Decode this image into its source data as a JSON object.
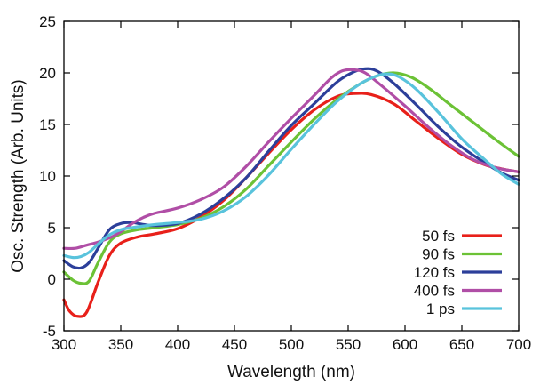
{
  "chart_data": {
    "type": "line",
    "title": "",
    "xlabel": "Wavelength (nm)",
    "ylabel": "Osc. Strength (Arb. Units)",
    "xlim": [
      300,
      700
    ],
    "ylim": [
      -5,
      25
    ],
    "xticks": [
      300,
      350,
      400,
      450,
      500,
      550,
      600,
      650,
      700
    ],
    "yticks": [
      -5,
      0,
      5,
      10,
      15,
      20,
      25
    ],
    "grid": false,
    "legend_position": "bottom-right",
    "series": [
      {
        "name": "50 fs",
        "color": "#e8201a",
        "points": [
          [
            300,
            -2
          ],
          [
            305,
            -3.1
          ],
          [
            312,
            -3.6
          ],
          [
            320,
            -3.2
          ],
          [
            330,
            -0.3
          ],
          [
            340,
            2.3
          ],
          [
            350,
            3.5
          ],
          [
            365,
            4.1
          ],
          [
            380,
            4.4
          ],
          [
            400,
            4.9
          ],
          [
            420,
            6.0
          ],
          [
            440,
            7.6
          ],
          [
            460,
            9.8
          ],
          [
            480,
            12.2
          ],
          [
            500,
            14.5
          ],
          [
            520,
            16.4
          ],
          [
            540,
            17.7
          ],
          [
            555,
            18.0
          ],
          [
            570,
            17.9
          ],
          [
            590,
            17.0
          ],
          [
            610,
            15.3
          ],
          [
            630,
            13.6
          ],
          [
            650,
            12.1
          ],
          [
            670,
            11.1
          ],
          [
            685,
            10.7
          ],
          [
            700,
            10.4
          ]
        ]
      },
      {
        "name": "90 fs",
        "color": "#6cc236",
        "points": [
          [
            300,
            0.7
          ],
          [
            308,
            -0.1
          ],
          [
            315,
            -0.4
          ],
          [
            322,
            -0.2
          ],
          [
            330,
            1.6
          ],
          [
            340,
            3.6
          ],
          [
            350,
            4.4
          ],
          [
            365,
            4.8
          ],
          [
            380,
            5.0
          ],
          [
            400,
            5.3
          ],
          [
            420,
            5.9
          ],
          [
            440,
            7.0
          ],
          [
            460,
            8.7
          ],
          [
            480,
            11.0
          ],
          [
            500,
            13.3
          ],
          [
            520,
            15.5
          ],
          [
            540,
            17.4
          ],
          [
            560,
            18.9
          ],
          [
            575,
            19.7
          ],
          [
            590,
            20.0
          ],
          [
            605,
            19.6
          ],
          [
            620,
            18.6
          ],
          [
            640,
            16.9
          ],
          [
            660,
            15.2
          ],
          [
            680,
            13.5
          ],
          [
            700,
            11.9
          ]
        ]
      },
      {
        "name": "120 fs",
        "color": "#2c3f9a",
        "points": [
          [
            300,
            1.8
          ],
          [
            308,
            1.2
          ],
          [
            315,
            1.1
          ],
          [
            322,
            1.6
          ],
          [
            330,
            3.0
          ],
          [
            340,
            4.8
          ],
          [
            350,
            5.4
          ],
          [
            360,
            5.5
          ],
          [
            370,
            5.3
          ],
          [
            380,
            5.2
          ],
          [
            400,
            5.4
          ],
          [
            420,
            6.3
          ],
          [
            440,
            7.8
          ],
          [
            460,
            9.8
          ],
          [
            480,
            12.4
          ],
          [
            500,
            14.9
          ],
          [
            520,
            17.0
          ],
          [
            540,
            19.1
          ],
          [
            555,
            20.1
          ],
          [
            565,
            20.4
          ],
          [
            575,
            20.2
          ],
          [
            590,
            19.0
          ],
          [
            610,
            16.9
          ],
          [
            630,
            14.7
          ],
          [
            650,
            12.8
          ],
          [
            670,
            11.3
          ],
          [
            685,
            10.3
          ],
          [
            700,
            9.6
          ]
        ]
      },
      {
        "name": "400 fs",
        "color": "#b04ea6",
        "points": [
          [
            300,
            3.0
          ],
          [
            310,
            3.0
          ],
          [
            320,
            3.3
          ],
          [
            330,
            3.6
          ],
          [
            340,
            4.0
          ],
          [
            350,
            4.6
          ],
          [
            360,
            5.4
          ],
          [
            370,
            6.0
          ],
          [
            380,
            6.4
          ],
          [
            400,
            6.9
          ],
          [
            420,
            7.7
          ],
          [
            440,
            8.9
          ],
          [
            460,
            10.9
          ],
          [
            480,
            13.3
          ],
          [
            500,
            15.6
          ],
          [
            520,
            17.8
          ],
          [
            535,
            19.5
          ],
          [
            545,
            20.2
          ],
          [
            555,
            20.3
          ],
          [
            565,
            20.0
          ],
          [
            580,
            18.7
          ],
          [
            600,
            16.8
          ],
          [
            620,
            14.8
          ],
          [
            640,
            13.0
          ],
          [
            660,
            11.6
          ],
          [
            680,
            10.8
          ],
          [
            700,
            10.4
          ]
        ]
      },
      {
        "name": "1 ps",
        "color": "#59c3dc",
        "points": [
          [
            300,
            2.3
          ],
          [
            308,
            2.1
          ],
          [
            315,
            2.2
          ],
          [
            322,
            2.6
          ],
          [
            330,
            3.4
          ],
          [
            340,
            4.3
          ],
          [
            350,
            4.8
          ],
          [
            360,
            5.0
          ],
          [
            380,
            5.3
          ],
          [
            400,
            5.5
          ],
          [
            420,
            5.8
          ],
          [
            440,
            6.6
          ],
          [
            460,
            8.0
          ],
          [
            480,
            10.1
          ],
          [
            500,
            12.6
          ],
          [
            520,
            15.0
          ],
          [
            540,
            17.2
          ],
          [
            560,
            18.9
          ],
          [
            575,
            19.7
          ],
          [
            585,
            19.9
          ],
          [
            595,
            19.6
          ],
          [
            610,
            18.4
          ],
          [
            630,
            16.1
          ],
          [
            650,
            13.6
          ],
          [
            670,
            11.6
          ],
          [
            685,
            10.2
          ],
          [
            700,
            9.2
          ]
        ]
      }
    ]
  }
}
